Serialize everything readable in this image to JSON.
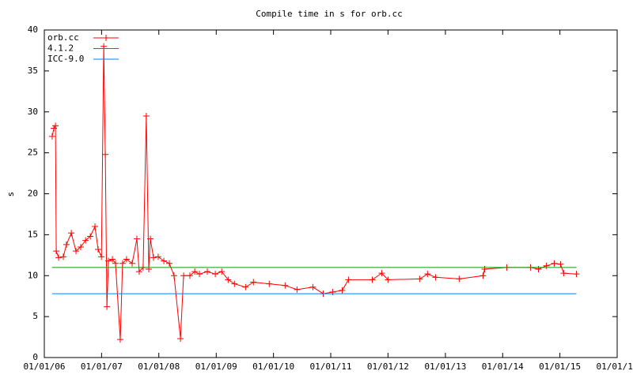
{
  "chart_data": {
    "type": "line",
    "title": "Compile time in s for orb.cc",
    "y_label": "s",
    "xlim": [
      "2006-01-01",
      "2016-01-01"
    ],
    "ylim": [
      0,
      40
    ],
    "xticks": [
      {
        "value": "2006-01-01",
        "label": "01/01/06"
      },
      {
        "value": "2007-01-01",
        "label": "01/01/07"
      },
      {
        "value": "2008-01-01",
        "label": "01/01/08"
      },
      {
        "value": "2009-01-01",
        "label": "01/01/09"
      },
      {
        "value": "2010-01-01",
        "label": "01/01/10"
      },
      {
        "value": "2011-01-01",
        "label": "01/01/11"
      },
      {
        "value": "2012-01-01",
        "label": "01/01/12"
      },
      {
        "value": "2013-01-01",
        "label": "01/01/13"
      },
      {
        "value": "2014-01-01",
        "label": "01/01/14"
      },
      {
        "value": "2015-01-01",
        "label": "01/01/15"
      },
      {
        "value": "2016-01-01",
        "label": "01/01/16"
      }
    ],
    "yticks": [
      0,
      5,
      10,
      15,
      20,
      25,
      30,
      35,
      40
    ],
    "legend": "top-left",
    "series": [
      {
        "name": "orb.cc",
        "color": "#ff0000",
        "markers": true,
        "x": [
          "2006-02-20",
          "2006-03-03",
          "2006-03-13",
          "2006-03-18",
          "2006-04-02",
          "2006-05-02",
          "2006-05-22",
          "2006-06-22",
          "2006-07-22",
          "2006-08-21",
          "2006-09-21",
          "2006-10-21",
          "2006-11-20",
          "2006-12-10",
          "2006-12-31",
          "2007-01-15",
          "2007-01-25",
          "2007-02-04",
          "2007-02-14",
          "2007-03-11",
          "2007-03-31",
          "2007-04-30",
          "2007-05-15",
          "2007-06-09",
          "2007-07-15",
          "2007-08-14",
          "2007-08-29",
          "2007-09-23",
          "2007-10-13",
          "2007-10-29",
          "2007-11-08",
          "2007-11-28",
          "2007-12-28",
          "2008-02-02",
          "2008-03-08",
          "2008-04-07",
          "2008-05-18",
          "2008-06-07",
          "2008-07-17",
          "2008-08-17",
          "2008-09-16",
          "2008-11-05",
          "2008-12-26",
          "2009-02-05",
          "2009-03-18",
          "2009-04-27",
          "2009-07-07",
          "2009-08-26",
          "2009-12-05",
          "2010-03-16",
          "2010-05-31",
          "2010-09-09",
          "2010-11-14",
          "2011-01-13",
          "2011-03-15",
          "2011-04-24",
          "2011-09-23",
          "2011-11-22",
          "2012-01-01",
          "2012-07-21",
          "2012-09-09",
          "2012-10-30",
          "2013-03-30",
          "2013-08-29",
          "2013-09-08",
          "2014-01-27",
          "2014-06-28",
          "2014-08-17",
          "2014-10-07",
          "2014-11-26",
          "2015-01-05",
          "2015-01-25",
          "2015-04-16"
        ],
        "values": [
          27,
          28,
          28.3,
          13,
          12.2,
          12.3,
          13.8,
          15.2,
          13,
          13.5,
          14.3,
          14.8,
          16,
          13.2,
          12.3,
          38,
          24.8,
          6.2,
          11.8,
          12,
          11.5,
          2.2,
          11.5,
          12,
          11.5,
          14.5,
          10.5,
          11,
          29.5,
          10.8,
          14.5,
          12.2,
          12.3,
          11.8,
          11.5,
          10,
          2.3,
          10,
          10,
          10.5,
          10.2,
          10.5,
          10.2,
          10.5,
          9.5,
          9,
          8.6,
          9.2,
          9,
          8.8,
          8.3,
          8.6,
          7.8,
          8,
          8.2,
          9.5,
          9.5,
          10.3,
          9.5,
          9.6,
          10.2,
          9.8,
          9.6,
          10,
          10.8,
          11,
          11,
          10.8,
          11.2,
          11.5,
          11.4,
          10.3,
          10.2
        ]
      },
      {
        "name": "4.1.2",
        "color": "#00a000",
        "x": [
          "2006-02-20",
          "2015-04-16"
        ],
        "values": [
          11,
          11
        ]
      },
      {
        "name": "ICC-9.0",
        "color": "#0080ff",
        "x": [
          "2006-02-20",
          "2015-04-16"
        ],
        "values": [
          7.8,
          7.8
        ]
      }
    ]
  }
}
